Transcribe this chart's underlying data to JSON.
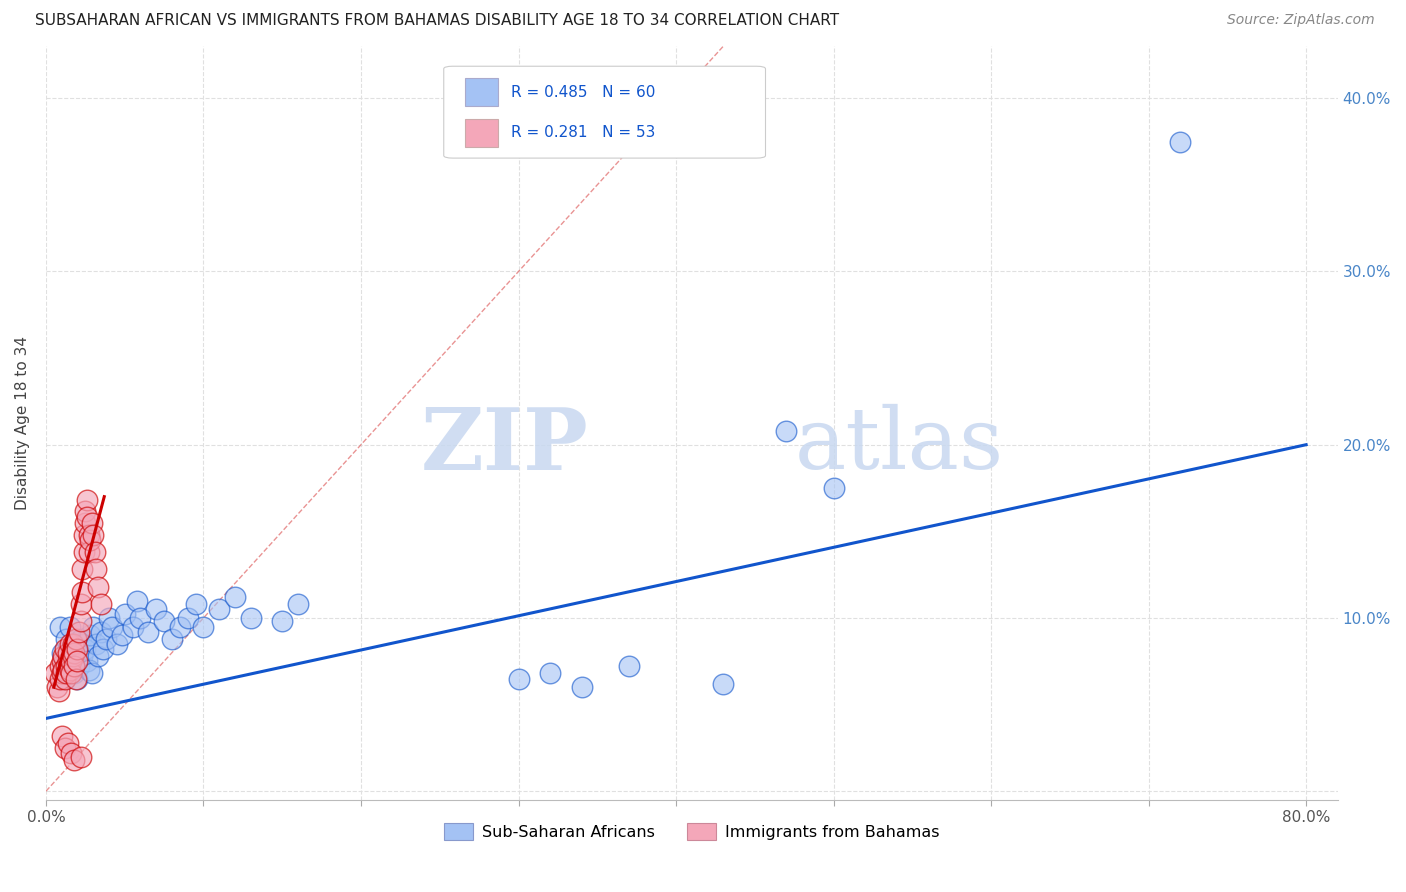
{
  "title": "SUBSAHARAN AFRICAN VS IMMIGRANTS FROM BAHAMAS DISABILITY AGE 18 TO 34 CORRELATION CHART",
  "source": "Source: ZipAtlas.com",
  "ylabel": "Disability Age 18 to 34",
  "xlim": [
    0.0,
    0.82
  ],
  "ylim": [
    -0.005,
    0.43
  ],
  "xticks": [
    0.0,
    0.1,
    0.2,
    0.3,
    0.4,
    0.5,
    0.6,
    0.7,
    0.8
  ],
  "yticks": [
    0.0,
    0.1,
    0.2,
    0.3,
    0.4
  ],
  "legend1_label": "Sub-Saharan Africans",
  "legend2_label": "Immigrants from Bahamas",
  "r1": 0.485,
  "n1": 60,
  "r2": 0.281,
  "n2": 53,
  "color1": "#a4c2f4",
  "color2": "#f4a7b9",
  "line1_color": "#1155cc",
  "line2_color": "#cc0000",
  "diagonal_color": "#e06666",
  "watermark_zip": "ZIP",
  "watermark_atlas": "atlas",
  "background_color": "#ffffff",
  "grid_color": "#e0e0e0",
  "blue_line_x": [
    0.0,
    0.8
  ],
  "blue_line_y": [
    0.042,
    0.2
  ],
  "red_line_x": [
    0.005,
    0.037
  ],
  "red_line_y": [
    0.06,
    0.17
  ],
  "scatter1": [
    [
      0.009,
      0.095
    ],
    [
      0.01,
      0.08
    ],
    [
      0.011,
      0.072
    ],
    [
      0.012,
      0.065
    ],
    [
      0.013,
      0.088
    ],
    [
      0.014,
      0.075
    ],
    [
      0.015,
      0.068
    ],
    [
      0.015,
      0.095
    ],
    [
      0.016,
      0.078
    ],
    [
      0.016,
      0.082
    ],
    [
      0.017,
      0.07
    ],
    [
      0.018,
      0.085
    ],
    [
      0.018,
      0.068
    ],
    [
      0.019,
      0.075
    ],
    [
      0.02,
      0.08
    ],
    [
      0.02,
      0.065
    ],
    [
      0.021,
      0.072
    ],
    [
      0.022,
      0.088
    ],
    [
      0.023,
      0.078
    ],
    [
      0.024,
      0.085
    ],
    [
      0.025,
      0.082
    ],
    [
      0.026,
      0.075
    ],
    [
      0.027,
      0.07
    ],
    [
      0.028,
      0.09
    ],
    [
      0.029,
      0.068
    ],
    [
      0.03,
      0.095
    ],
    [
      0.032,
      0.085
    ],
    [
      0.033,
      0.078
    ],
    [
      0.035,
      0.092
    ],
    [
      0.036,
      0.082
    ],
    [
      0.038,
      0.088
    ],
    [
      0.04,
      0.1
    ],
    [
      0.042,
      0.095
    ],
    [
      0.045,
      0.085
    ],
    [
      0.048,
      0.09
    ],
    [
      0.05,
      0.102
    ],
    [
      0.055,
      0.095
    ],
    [
      0.058,
      0.11
    ],
    [
      0.06,
      0.1
    ],
    [
      0.065,
      0.092
    ],
    [
      0.07,
      0.105
    ],
    [
      0.075,
      0.098
    ],
    [
      0.08,
      0.088
    ],
    [
      0.085,
      0.095
    ],
    [
      0.09,
      0.1
    ],
    [
      0.095,
      0.108
    ],
    [
      0.1,
      0.095
    ],
    [
      0.11,
      0.105
    ],
    [
      0.12,
      0.112
    ],
    [
      0.13,
      0.1
    ],
    [
      0.15,
      0.098
    ],
    [
      0.16,
      0.108
    ],
    [
      0.3,
      0.065
    ],
    [
      0.32,
      0.068
    ],
    [
      0.34,
      0.06
    ],
    [
      0.37,
      0.072
    ],
    [
      0.43,
      0.062
    ],
    [
      0.47,
      0.208
    ],
    [
      0.5,
      0.175
    ],
    [
      0.72,
      0.375
    ]
  ],
  "scatter2": [
    [
      0.006,
      0.068
    ],
    [
      0.007,
      0.06
    ],
    [
      0.008,
      0.058
    ],
    [
      0.009,
      0.065
    ],
    [
      0.009,
      0.072
    ],
    [
      0.01,
      0.075
    ],
    [
      0.01,
      0.068
    ],
    [
      0.011,
      0.078
    ],
    [
      0.011,
      0.07
    ],
    [
      0.012,
      0.065
    ],
    [
      0.012,
      0.082
    ],
    [
      0.013,
      0.072
    ],
    [
      0.013,
      0.068
    ],
    [
      0.014,
      0.075
    ],
    [
      0.014,
      0.08
    ],
    [
      0.015,
      0.07
    ],
    [
      0.015,
      0.085
    ],
    [
      0.016,
      0.075
    ],
    [
      0.016,
      0.068
    ],
    [
      0.017,
      0.078
    ],
    [
      0.017,
      0.085
    ],
    [
      0.018,
      0.08
    ],
    [
      0.018,
      0.072
    ],
    [
      0.019,
      0.088
    ],
    [
      0.019,
      0.065
    ],
    [
      0.02,
      0.082
    ],
    [
      0.02,
      0.075
    ],
    [
      0.021,
      0.092
    ],
    [
      0.022,
      0.098
    ],
    [
      0.022,
      0.108
    ],
    [
      0.023,
      0.115
    ],
    [
      0.023,
      0.128
    ],
    [
      0.024,
      0.138
    ],
    [
      0.024,
      0.148
    ],
    [
      0.025,
      0.155
    ],
    [
      0.025,
      0.162
    ],
    [
      0.026,
      0.168
    ],
    [
      0.026,
      0.158
    ],
    [
      0.027,
      0.148
    ],
    [
      0.027,
      0.138
    ],
    [
      0.028,
      0.145
    ],
    [
      0.029,
      0.155
    ],
    [
      0.03,
      0.148
    ],
    [
      0.031,
      0.138
    ],
    [
      0.032,
      0.128
    ],
    [
      0.033,
      0.118
    ],
    [
      0.035,
      0.108
    ],
    [
      0.01,
      0.032
    ],
    [
      0.012,
      0.025
    ],
    [
      0.014,
      0.028
    ],
    [
      0.016,
      0.022
    ],
    [
      0.018,
      0.018
    ],
    [
      0.022,
      0.02
    ]
  ]
}
